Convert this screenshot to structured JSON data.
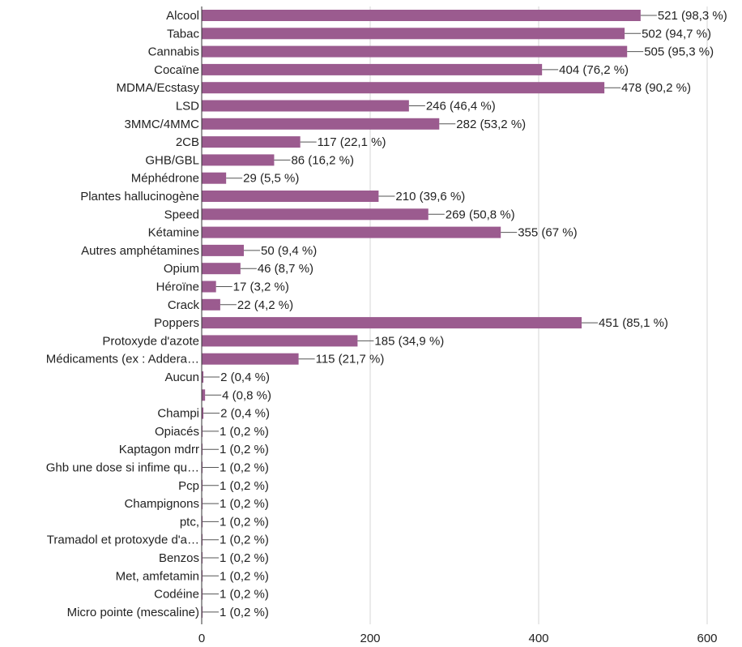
{
  "chart_data": {
    "type": "bar",
    "orientation": "horizontal",
    "bar_color": "#9b5b8f",
    "grid": true,
    "xlim": [
      0,
      600
    ],
    "x_ticks": [
      "0",
      "200",
      "400",
      "600"
    ],
    "categories": [
      "Alcool",
      "Tabac",
      "Cannabis",
      "Cocaïne",
      "MDMA/Ecstasy",
      "LSD",
      "3MMC/4MMC",
      "2CB",
      "GHB/GBL",
      "Méphédrone",
      "Plantes hallucinogène",
      "Speed",
      "Kétamine",
      "Autres amphétamines",
      "Opium",
      "Héroïne",
      "Crack",
      "Poppers",
      "Protoxyde d'azote",
      "Médicaments (ex : Addera…",
      "Aucun",
      "",
      "Champi",
      "Opiacés",
      "Kaptagon mdrr",
      "Ghb une dose si infime qu…",
      "Pcp",
      "Champignons",
      "ptc,",
      "Tramadol et protoxyde d'a…",
      "Benzos",
      "Met, amfetamin",
      "Codéine",
      "Micro pointe (mescaline)"
    ],
    "values": [
      521,
      502,
      505,
      404,
      478,
      246,
      282,
      117,
      86,
      29,
      210,
      269,
      355,
      50,
      46,
      17,
      22,
      451,
      185,
      115,
      2,
      4,
      2,
      1,
      1,
      1,
      1,
      1,
      1,
      1,
      1,
      1,
      1,
      1
    ],
    "value_labels": [
      "521 (98,3 %)",
      "502 (94,7 %)",
      "505 (95,3 %)",
      "404 (76,2 %)",
      "478 (90,2 %)",
      "246 (46,4 %)",
      "282 (53,2 %)",
      "117 (22,1 %)",
      "86 (16,2 %)",
      "29 (5,5 %)",
      "210 (39,6 %)",
      "269 (50,8 %)",
      "355 (67 %)",
      "50 (9,4 %)",
      "46 (8,7 %)",
      "17 (3,2 %)",
      "22 (4,2 %)",
      "451 (85,1 %)",
      "185 (34,9 %)",
      "115 (21,7 %)",
      "2 (0,4 %)",
      "4 (0,8 %)",
      "2 (0,4 %)",
      "1 (0,2 %)",
      "1 (0,2 %)",
      "1 (0,2 %)",
      "1 (0,2 %)",
      "1 (0,2 %)",
      "1 (0,2 %)",
      "1 (0,2 %)",
      "1 (0,2 %)",
      "1 (0,2 %)",
      "1 (0,2 %)",
      "1 (0,2 %)"
    ]
  }
}
